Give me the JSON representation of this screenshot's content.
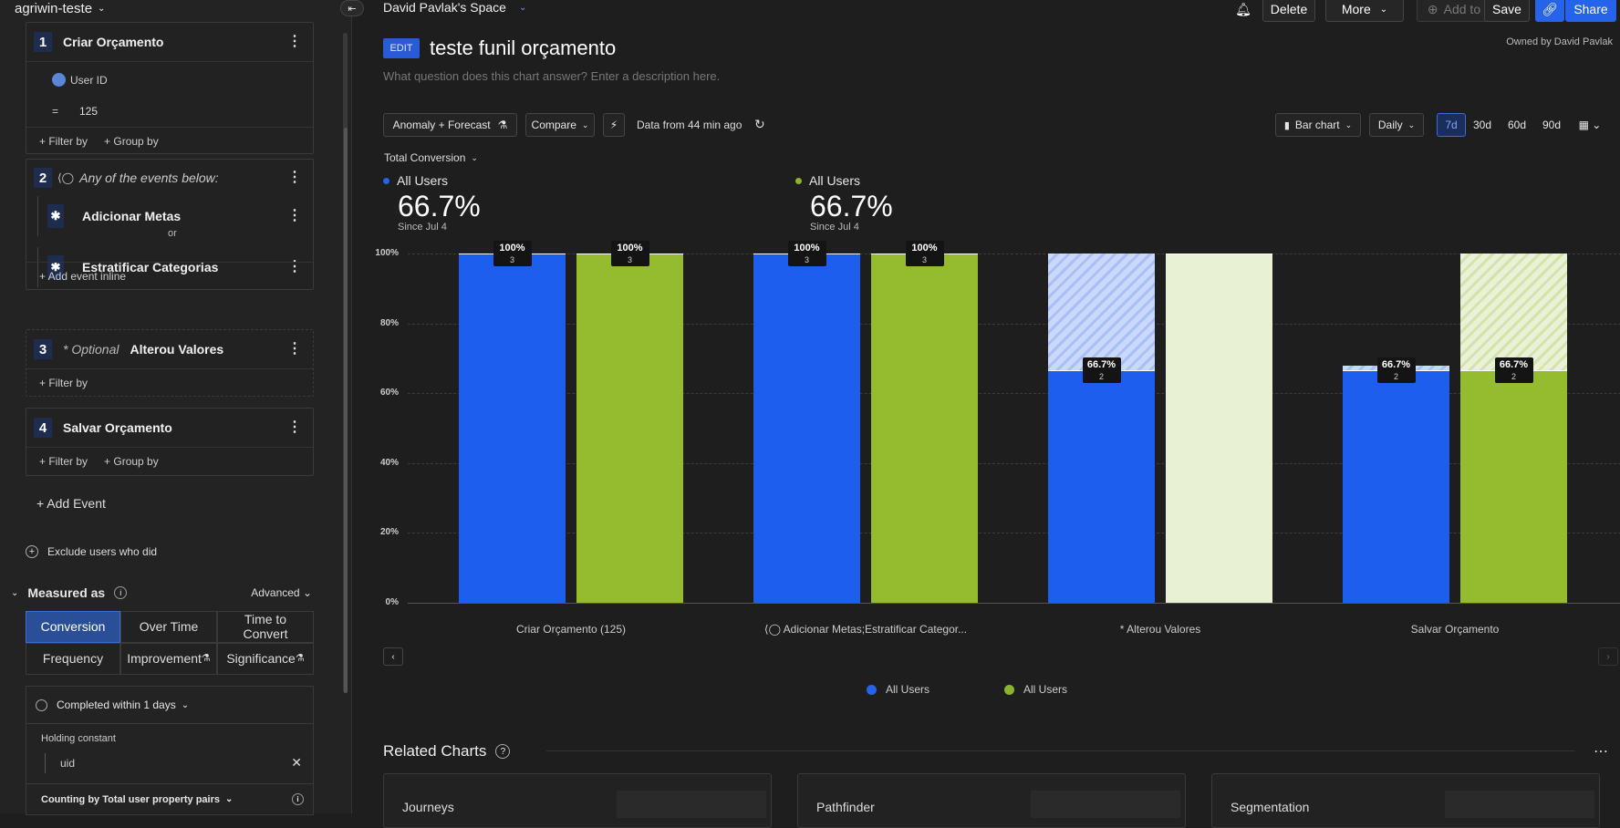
{
  "workspace": "agriwin-teste",
  "steps": [
    {
      "num": "1",
      "title": "Criar Orçamento",
      "filter_prop": "User ID",
      "filter_op": "=",
      "filter_val": "125",
      "filter_by": "+ Filter by",
      "group_by": "+ Group by"
    },
    {
      "num": "2",
      "title": "Any of the events below:",
      "events": [
        "Adicionar Metas",
        "Estratificar Categorias"
      ],
      "or": "or",
      "add_inline": "+ Add event inline"
    },
    {
      "num": "3",
      "optional": "* Optional",
      "title": "Alterou Valores",
      "filter_by": "+ Filter by"
    },
    {
      "num": "4",
      "title": "Salvar Orçamento",
      "filter_by": "+ Filter by",
      "group_by": "+ Group by"
    }
  ],
  "add_event": "+ Add Event",
  "exclude": "Exclude users who did",
  "measured_as": "Measured as",
  "advanced": "Advanced",
  "measures": {
    "conversion": "Conversion",
    "over_time": "Over Time",
    "time_to_convert": "Time to Convert",
    "frequency": "Frequency",
    "improvement": "Improvement",
    "significance": "Significance"
  },
  "completed_within": "Completed within 1 days",
  "holding_constant": "Holding constant",
  "holding_value": "uid",
  "counting_by": "Counting by Total user property pairs",
  "topbar": {
    "space": "David Pavlak's Space",
    "delete": "Delete",
    "more": "More",
    "add_to": "Add to",
    "save": "Save",
    "share": "Share"
  },
  "chart_header": {
    "edit": "EDIT",
    "title": "teste funil orçamento",
    "owner": "Owned by David Pavlak",
    "description_placeholder": "What question does this chart answer? Enter a description here."
  },
  "controls": {
    "anomaly": "Anomaly + Forecast",
    "compare": "Compare",
    "data_from": "Data from 44 min ago",
    "chart_type": "Bar chart",
    "interval": "Daily",
    "ranges": [
      "7d",
      "30d",
      "60d",
      "90d"
    ],
    "selected_range": "7d"
  },
  "metric_selector": "Total Conversion",
  "summaries": [
    {
      "label": "All Users",
      "value": "66.7%",
      "since": "Since Jul 4",
      "color": "#2563eb"
    },
    {
      "label": "All Users",
      "value": "66.7%",
      "since": "Since Jul 4",
      "color": "#8db32e"
    }
  ],
  "chart_data": {
    "type": "bar",
    "categories": [
      "Criar Orçamento (125)",
      "Adicionar Metas;Estratificar Categor...",
      "* Alterou Valores",
      "Salvar Orçamento"
    ],
    "ylim": [
      0,
      100
    ],
    "yticks": [
      "0%",
      "20%",
      "40%",
      "60%",
      "80%",
      "100%"
    ],
    "series": [
      {
        "name": "All Users",
        "color": "#1e5eef",
        "values": [
          100,
          100,
          66.7,
          66.7
        ],
        "counts": [
          3,
          3,
          2,
          2
        ],
        "labels": [
          "100%",
          "100%",
          "66.7%",
          "66.7%"
        ],
        "dropoff_to": [
          null,
          null,
          100,
          68
        ]
      },
      {
        "name": "All Users",
        "color": "#95bc2f",
        "values": [
          100,
          100,
          100,
          66.7
        ],
        "counts": [
          3,
          3,
          null,
          2
        ],
        "labels": [
          "100%",
          "100%",
          null,
          "66.7%"
        ],
        "dropoff_to": [
          null,
          null,
          null,
          100
        ]
      }
    ],
    "legend": "bottom",
    "grid": true
  },
  "related": {
    "title": "Related Charts",
    "cards": [
      "Journeys",
      "Pathfinder",
      "Segmentation"
    ]
  }
}
